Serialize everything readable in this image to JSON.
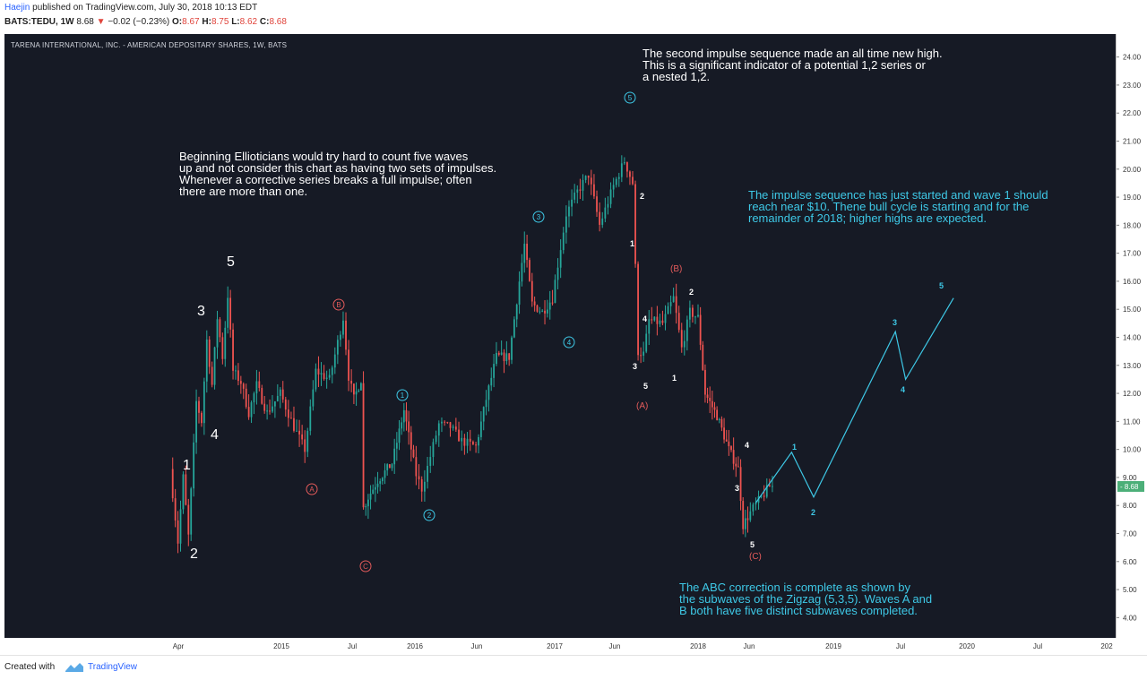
{
  "header": {
    "author": "Haejin",
    "publish_text": "published on TradingView.com, July 30, 2018 10:13 EDT",
    "symbol_label": "BATS:TEDU, 1W",
    "last": "8.68",
    "change": "−0.02 (−0.23%)",
    "open_label": "O:",
    "open": "8.67",
    "high_label": "H:",
    "high": "8.75",
    "low_label": "L:",
    "low": "8.62",
    "close_label": "C:",
    "close": "8.68"
  },
  "chart": {
    "title": "TARENA INTERNATIONAL, INC. - AMERICAN DEPOSITARY SHARES, 1W, BATS",
    "annotations": {
      "top_right": "The second impulse sequence made an all time new high.\nThis is a significant indicator of a potential 1,2 series or\na nested 1,2.",
      "left": "Beginning Ellioticians would try hard to count five waves\nup and not consider this chart as having two sets of impulses.\nWhenever a corrective series breaks a full impulse; often\nthere are more than one.",
      "right": "The impulse sequence has just started and wave 1 should\nreach near $10. Thene bull cycle is starting and for the\nremainder of 2018; higher highs are expected.",
      "bottom": "The ABC correction is complete as shown by\nthe subwaves of the Zigzag (5,3,5). Waves A and\nB both have five distinct subwaves completed."
    },
    "wave_labels": {
      "impulse_first": [
        "1",
        "2",
        "3",
        "4",
        "5"
      ],
      "impulse_second": [
        "1",
        "2",
        "3",
        "4",
        "5"
      ],
      "correction_1": [
        "A",
        "B",
        "C"
      ],
      "sub_a": [
        "1",
        "2",
        "3",
        "4",
        "5"
      ],
      "sub_b": [
        "1",
        "2"
      ],
      "sub_c": [
        "3",
        "4",
        "5"
      ],
      "correction_2": [
        "(A)",
        "(B)",
        "(C)"
      ],
      "projection": [
        "1",
        "2",
        "3",
        "4",
        "5"
      ]
    }
  },
  "footer": {
    "created_with": "Created with",
    "brand": "TradingView"
  },
  "colors": {
    "background": "#161a25",
    "up": "#26a69a",
    "down": "#ef5350",
    "cyan": "#3ec8e6",
    "red_label": "#e45b5b",
    "price_badge": "#4caf78"
  },
  "chart_data": {
    "type": "candlestick",
    "title": "TARENA INTERNATIONAL, INC. - AMERICAN DEPOSITARY SHARES, 1W, BATS",
    "y_ticks": [
      "24.00",
      "23.00",
      "22.00",
      "21.00",
      "20.00",
      "19.00",
      "18.00",
      "17.00",
      "16.00",
      "15.00",
      "14.00",
      "13.00",
      "12.00",
      "11.00",
      "10.00",
      "9.00",
      "8.00",
      "7.00",
      "6.00",
      "5.00",
      "4.00"
    ],
    "ylim": [
      3.5,
      24.5
    ],
    "x_ticks": [
      "Apr",
      "2015",
      "Jul",
      "2016",
      "Jun",
      "2017",
      "Jun",
      "2018",
      "Jun",
      "2019",
      "Jul",
      "2020",
      "Jul",
      "202"
    ],
    "current_price": "8.68",
    "price_path": [
      [
        "2014-03-17",
        9.3
      ],
      [
        "2014-04-07",
        6.7
      ],
      [
        "2014-04-21",
        9.0
      ],
      [
        "2014-05-05",
        6.9
      ],
      [
        "2014-05-26",
        11.7
      ],
      [
        "2014-06-09",
        11.0
      ],
      [
        "2014-06-23",
        13.9
      ],
      [
        "2014-07-07",
        12.3
      ],
      [
        "2014-07-21",
        14.7
      ],
      [
        "2014-08-04",
        13.3
      ],
      [
        "2014-08-18",
        15.5
      ],
      [
        "2014-09-01",
        12.8
      ],
      [
        "2014-09-22",
        12.4
      ],
      [
        "2014-10-13",
        11.3
      ],
      [
        "2014-11-03",
        12.3
      ],
      [
        "2014-12-01",
        11.3
      ],
      [
        "2015-01-05",
        12.0
      ],
      [
        "2015-02-09",
        10.8
      ],
      [
        "2015-03-09",
        10.0
      ],
      [
        "2015-04-06",
        12.8
      ],
      [
        "2015-05-11",
        12.5
      ],
      [
        "2015-06-15",
        14.7
      ],
      [
        "2015-06-29",
        12.6
      ],
      [
        "2015-07-13",
        11.8
      ],
      [
        "2015-08-03",
        12.5
      ],
      [
        "2015-08-10",
        7.9
      ],
      [
        "2015-08-24",
        8.3
      ],
      [
        "2015-09-21",
        8.9
      ],
      [
        "2015-11-02",
        9.5
      ],
      [
        "2015-12-07",
        11.4
      ],
      [
        "2016-01-11",
        9.1
      ],
      [
        "2016-01-25",
        8.6
      ],
      [
        "2016-03-07",
        10.9
      ],
      [
        "2016-04-04",
        10.8
      ],
      [
        "2016-05-02",
        10.3
      ],
      [
        "2016-06-06",
        10.1
      ],
      [
        "2016-07-04",
        11.8
      ],
      [
        "2016-08-01",
        13.3
      ],
      [
        "2016-09-05",
        13.3
      ],
      [
        "2016-10-03",
        16.0
      ],
      [
        "2016-10-17",
        17.3
      ],
      [
        "2016-11-07",
        15.2
      ],
      [
        "2016-12-05",
        14.9
      ],
      [
        "2017-01-02",
        15.4
      ],
      [
        "2017-02-06",
        18.4
      ],
      [
        "2017-03-06",
        19.2
      ],
      [
        "2017-04-03",
        19.8
      ],
      [
        "2017-05-01",
        18.0
      ],
      [
        "2017-06-05",
        19.4
      ],
      [
        "2017-07-03",
        20.3
      ],
      [
        "2017-07-24",
        19.5
      ],
      [
        "2017-08-07",
        13.5
      ],
      [
        "2017-08-21",
        13.4
      ],
      [
        "2017-09-04",
        14.6
      ],
      [
        "2017-10-09",
        14.5
      ],
      [
        "2017-11-06",
        15.4
      ],
      [
        "2017-11-27",
        13.6
      ],
      [
        "2017-12-18",
        14.9
      ],
      [
        "2018-01-08",
        14.7
      ],
      [
        "2018-01-29",
        12.0
      ],
      [
        "2018-03-05",
        11.2
      ],
      [
        "2018-04-09",
        10.0
      ],
      [
        "2018-05-07",
        9.3
      ],
      [
        "2018-05-21",
        7.3
      ],
      [
        "2018-06-18",
        7.9
      ],
      [
        "2018-07-30",
        8.68
      ]
    ],
    "projection_path": [
      [
        "2018-06-18",
        8.1
      ],
      [
        "2018-09-17",
        9.9
      ],
      [
        "2018-11-12",
        8.3
      ],
      [
        "2019-06-17",
        14.2
      ],
      [
        "2019-07-15",
        12.5
      ],
      [
        "2019-11-25",
        15.4
      ]
    ]
  }
}
